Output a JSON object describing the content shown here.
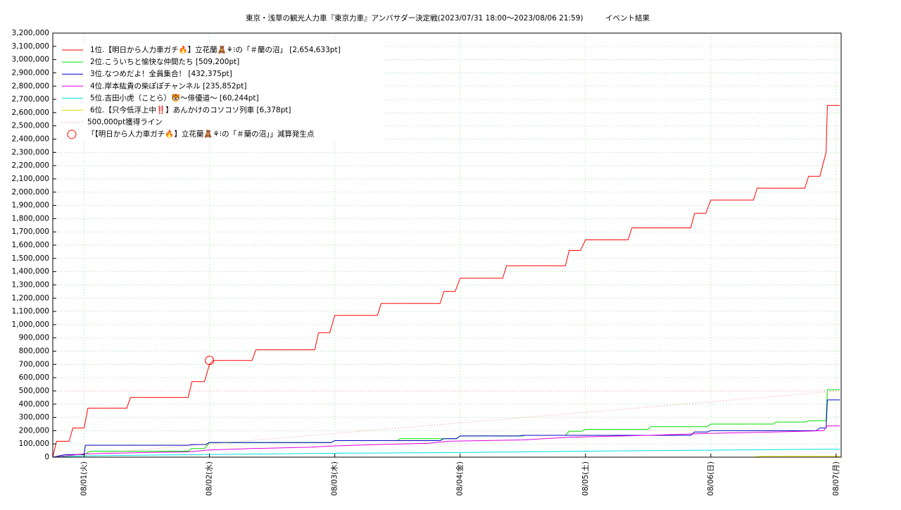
{
  "chart_data": {
    "type": "line",
    "title": "東京・浅草の観光人力車『東京力車』アンバサダー決定戦(2023/07/31 18:00～2023/08/06 21:59)　　　イベント結果",
    "xlim": [
      0.75,
      7.04
    ],
    "xticks": [
      {
        "value": 1,
        "label": "08/01(火)"
      },
      {
        "value": 2,
        "label": "08/02(水)"
      },
      {
        "value": 3,
        "label": "08/03(木)"
      },
      {
        "value": 4,
        "label": "08/04(金)"
      },
      {
        "value": 5,
        "label": "08/05(土)"
      },
      {
        "value": 6,
        "label": "08/06(日)"
      },
      {
        "value": 7,
        "label": "08/07(月)"
      }
    ],
    "ylim": [
      0,
      3200000
    ],
    "yticks": [
      0,
      {
        "value": 100000,
        "label": "100,000"
      },
      {
        "value": 200000,
        "label": "200,000"
      },
      {
        "value": 300000,
        "label": "300,000"
      },
      {
        "value": 400000,
        "label": "400,000"
      },
      {
        "value": 500000,
        "label": "500,000"
      },
      {
        "value": 600000,
        "label": "600,000"
      },
      {
        "value": 700000,
        "label": "700,000"
      },
      {
        "value": 800000,
        "label": "800,000"
      },
      {
        "value": 900000,
        "label": "900,000"
      },
      {
        "value": 1000000,
        "label": "1,000,000"
      },
      {
        "value": 1100000,
        "label": "1,100,000"
      },
      {
        "value": 1200000,
        "label": "1,200,000"
      },
      {
        "value": 1300000,
        "label": "1,300,000"
      },
      {
        "value": 1400000,
        "label": "1,400,000"
      },
      {
        "value": 1500000,
        "label": "1,500,000"
      },
      {
        "value": 1600000,
        "label": "1,600,000"
      },
      {
        "value": 1700000,
        "label": "1,700,000"
      },
      {
        "value": 1800000,
        "label": "1,800,000"
      },
      {
        "value": 1900000,
        "label": "1,900,000"
      },
      {
        "value": 2000000,
        "label": "2,000,000"
      },
      {
        "value": 2100000,
        "label": "2,100,000"
      },
      {
        "value": 2200000,
        "label": "2,200,000"
      },
      {
        "value": 2300000,
        "label": "2,300,000"
      },
      {
        "value": 2400000,
        "label": "2,400,000"
      },
      {
        "value": 2500000,
        "label": "2,500,000"
      },
      {
        "value": 2600000,
        "label": "2,600,000"
      },
      {
        "value": 2700000,
        "label": "2,700,000"
      },
      {
        "value": 2800000,
        "label": "2,800,000"
      },
      {
        "value": 2900000,
        "label": "2,900,000"
      },
      {
        "value": 3000000,
        "label": "3,000,000"
      },
      {
        "value": 3100000,
        "label": "3,100,000"
      },
      {
        "value": 3200000,
        "label": "3,200,000"
      }
    ],
    "grid": true,
    "legend": "upper-left",
    "hline": 500000,
    "series": [
      {
        "name": "1位.【明日から人力車ガチ🔥】立花蘭🧸⚘⁝の「＃蘭の沼」 [2,654,633pt]",
        "color": "#ff0000",
        "x": [
          0.75,
          0.78,
          0.88,
          0.91,
          1.0,
          1.03,
          1.34,
          1.37,
          1.83,
          1.86,
          1.96,
          2.0,
          2.03,
          2.34,
          2.37,
          2.84,
          2.87,
          2.96,
          3.0,
          3.34,
          3.37,
          3.84,
          3.87,
          3.96,
          4.0,
          4.34,
          4.37,
          4.84,
          4.87,
          4.96,
          5.0,
          5.34,
          5.37,
          5.84,
          5.87,
          5.96,
          6.0,
          6.34,
          6.37,
          6.75,
          6.78,
          6.87,
          6.92,
          6.93,
          7.03
        ],
        "values": [
          0,
          120000,
          120000,
          220000,
          220000,
          370000,
          370000,
          450000,
          450000,
          570000,
          570000,
          700000,
          730000,
          730000,
          810000,
          810000,
          940000,
          940000,
          1070000,
          1070000,
          1160000,
          1160000,
          1250000,
          1250000,
          1350000,
          1350000,
          1445000,
          1445000,
          1560000,
          1560000,
          1640000,
          1640000,
          1730000,
          1730000,
          1840000,
          1840000,
          1940000,
          1940000,
          2030000,
          2030000,
          2120000,
          2120000,
          2300000,
          2654633,
          2654633
        ]
      },
      {
        "name": "2位.こういちと愉快な仲間たち [509,200pt]",
        "color": "#00dd00",
        "x": [
          0.75,
          0.95,
          1.0,
          1.05,
          1.83,
          1.86,
          1.96,
          2.0,
          2.97,
          3.0,
          3.5,
          3.52,
          3.97,
          4.0,
          4.5,
          4.52,
          4.84,
          4.87,
          4.97,
          5.0,
          5.5,
          5.52,
          5.97,
          6.0,
          6.5,
          6.52,
          6.75,
          6.78,
          6.92,
          6.93,
          7.03
        ],
        "values": [
          0,
          20000,
          20000,
          45000,
          45000,
          65000,
          65000,
          110000,
          110000,
          125000,
          125000,
          140000,
          140000,
          160000,
          160000,
          165000,
          165000,
          195000,
          195000,
          210000,
          210000,
          230000,
          230000,
          250000,
          250000,
          265000,
          265000,
          275000,
          275000,
          509200,
          509200
        ]
      },
      {
        "name": "3位.なつめだよ！全員集合！ [432,375pt]",
        "color": "#0000c8",
        "x": [
          0.75,
          0.85,
          1.0,
          1.01,
          1.83,
          1.86,
          1.97,
          2.0,
          2.97,
          3.0,
          3.84,
          3.87,
          3.97,
          4.0,
          4.47,
          4.5,
          5.84,
          5.87,
          5.97,
          6.0,
          6.84,
          6.87,
          6.92,
          6.93,
          7.03
        ],
        "values": [
          0,
          20000,
          20000,
          90000,
          90000,
          95000,
          95000,
          110000,
          110000,
          125000,
          125000,
          140000,
          140000,
          160000,
          160000,
          165000,
          165000,
          190000,
          190000,
          200000,
          200000,
          220000,
          220000,
          432375,
          432375
        ]
      },
      {
        "name": "4位.岸本紘貴の柴ぽぽチャンネル [235,852pt]",
        "color": "#e000e0",
        "x": [
          0.75,
          0.9,
          1.0,
          1.5,
          1.83,
          2.0,
          2.34,
          2.8,
          3.0,
          3.34,
          3.75,
          3.9,
          4.5,
          4.87,
          5.5,
          6.0,
          6.5,
          6.9,
          6.93,
          7.03
        ],
        "values": [
          0,
          15000,
          25000,
          35000,
          40000,
          55000,
          65000,
          75000,
          85000,
          95000,
          105000,
          120000,
          130000,
          150000,
          165000,
          180000,
          190000,
          200000,
          235852,
          235852
        ]
      },
      {
        "name": "5位.吉田小虎（ことら）🐯〜俳優道〜 [60,244pt]",
        "color": "#00e0e0",
        "x": [
          0.75,
          1.0,
          2.0,
          3.0,
          4.0,
          5.0,
          6.2,
          6.9,
          7.03
        ],
        "values": [
          0,
          10000,
          20000,
          30000,
          35000,
          45000,
          55000,
          60244,
          60244
        ]
      },
      {
        "name": "6位.【只今低浮上中‼️】あんかけのコソコソ列車 [6,378pt]",
        "color": "#e0e000",
        "x": [
          6.34,
          6.4,
          7.03
        ],
        "values": [
          0,
          6378,
          6378
        ]
      },
      {
        "name": "500,000pt獲得ライン",
        "color": "#ff8080",
        "dash": true,
        "x": [
          0.75,
          7.03
        ],
        "values": [
          0,
          500000
        ]
      },
      {
        "name": "「【明日から人力車ガチ🔥】立花蘭🧸⚘⁝の「＃蘭の沼」」減算発生点",
        "color": "#ff0000",
        "marker": "circle",
        "x": [
          2.0
        ],
        "values": [
          730000
        ]
      }
    ]
  }
}
